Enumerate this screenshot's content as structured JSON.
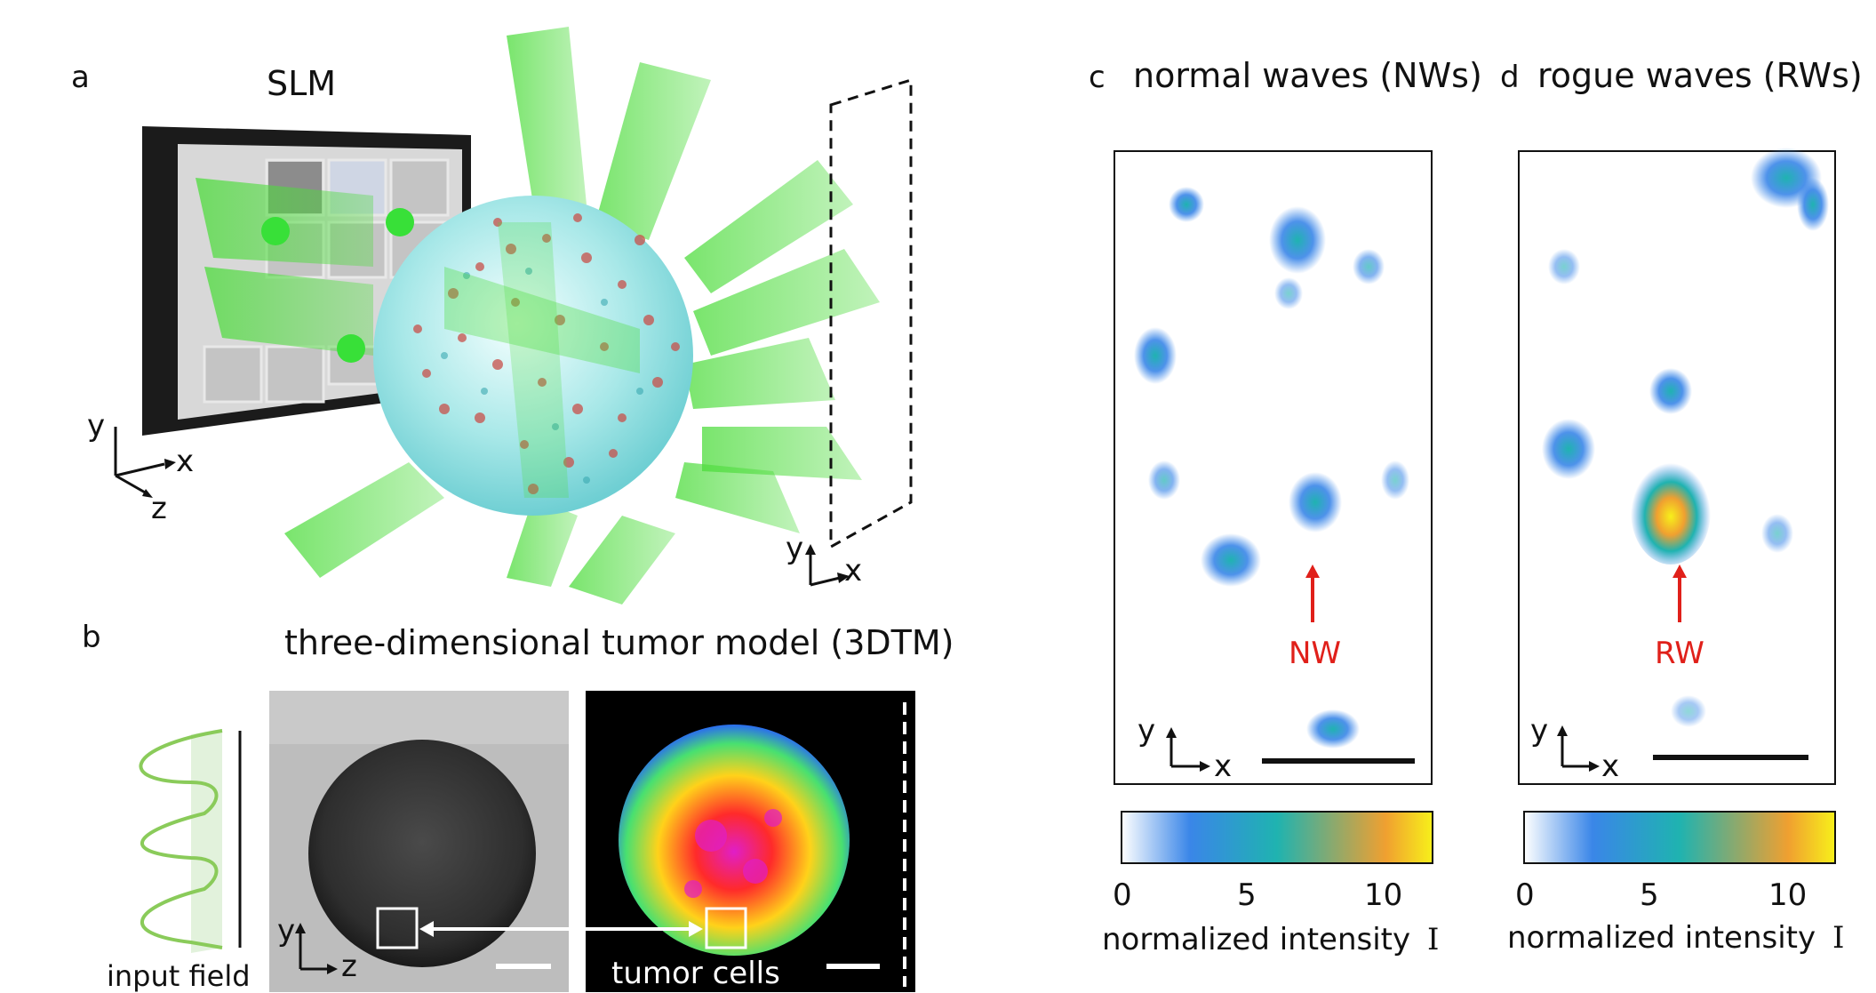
{
  "panels": {
    "a": {
      "letter": "a",
      "device": "SLM",
      "axis": {
        "y": "y",
        "x": "x",
        "z": "z"
      },
      "plane_axis": {
        "y": "y",
        "x": "x"
      }
    },
    "b": {
      "letter": "b",
      "title": "three-dimensional tumor model (3DTM)",
      "input_label": "input field",
      "tumor_label": "tumor cells",
      "axis": {
        "y": "y",
        "z": "z"
      }
    },
    "c": {
      "letter": "c",
      "title": "normal waves (NWs)",
      "marker": "NW",
      "axis": {
        "y": "y",
        "x": "x"
      }
    },
    "d": {
      "letter": "d",
      "title": "rogue waves (RWs)",
      "marker": "RW",
      "axis": {
        "y": "y",
        "x": "x"
      }
    }
  },
  "colorbar": {
    "ticks": [
      "0",
      "5",
      "10"
    ],
    "label": "normalized intensity",
    "symbol": "I",
    "colors": [
      "#ffffff",
      "#3a86e8",
      "#1fb3b0",
      "#f0a030",
      "#f7f01a"
    ]
  },
  "colors": {
    "beam": "#4ddc3c",
    "marker": "#e0201a",
    "tumor_fill": "#8ee0e0"
  }
}
